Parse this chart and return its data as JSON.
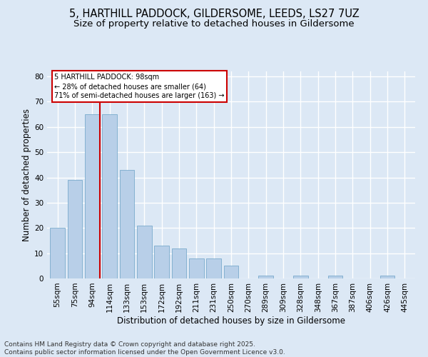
{
  "title1": "5, HARTHILL PADDOCK, GILDERSOME, LEEDS, LS27 7UZ",
  "title2": "Size of property relative to detached houses in Gildersome",
  "xlabel": "Distribution of detached houses by size in Gildersome",
  "ylabel": "Number of detached properties",
  "categories": [
    "55sqm",
    "75sqm",
    "94sqm",
    "114sqm",
    "133sqm",
    "153sqm",
    "172sqm",
    "192sqm",
    "211sqm",
    "231sqm",
    "250sqm",
    "270sqm",
    "289sqm",
    "309sqm",
    "328sqm",
    "348sqm",
    "367sqm",
    "387sqm",
    "406sqm",
    "426sqm",
    "445sqm"
  ],
  "values": [
    20,
    39,
    65,
    65,
    43,
    21,
    13,
    12,
    8,
    8,
    5,
    0,
    1,
    0,
    1,
    0,
    1,
    0,
    0,
    1,
    0
  ],
  "bar_color": "#b8cfe8",
  "bar_edge_color": "#7aabcc",
  "vline_x_index": 2,
  "vline_color": "#cc0000",
  "annotation_text": "5 HARTHILL PADDOCK: 98sqm\n← 28% of detached houses are smaller (64)\n71% of semi-detached houses are larger (163) →",
  "annotation_box_color": "#ffffff",
  "annotation_box_edge": "#cc0000",
  "ylim": [
    0,
    82
  ],
  "yticks": [
    0,
    10,
    20,
    30,
    40,
    50,
    60,
    70,
    80
  ],
  "footer": "Contains HM Land Registry data © Crown copyright and database right 2025.\nContains public sector information licensed under the Open Government Licence v3.0.",
  "bg_color": "#dce8f5",
  "plot_bg_color": "#dce8f5",
  "grid_color": "#ffffff",
  "title_fontsize": 10.5,
  "subtitle_fontsize": 9.5,
  "axis_label_fontsize": 8.5,
  "tick_fontsize": 7.5,
  "footer_fontsize": 6.5
}
